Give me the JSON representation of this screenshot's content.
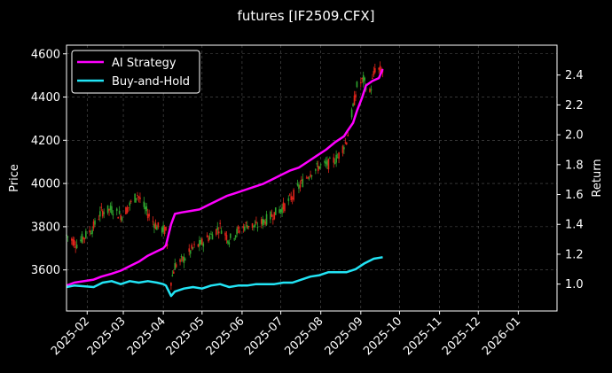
{
  "chart_data": {
    "type": "line",
    "title": "futures [IF2509.CFX]",
    "ylabel": "Price",
    "y2label": "Return",
    "x_ticks": [
      "2025-02",
      "2025-03",
      "2025-04",
      "2025-05",
      "2025-06",
      "2025-07",
      "2025-08",
      "2025-09",
      "2025-10",
      "2025-11",
      "2025-12",
      "2026-01"
    ],
    "xlim": [
      "2025-01-16",
      "2026-01-31"
    ],
    "ylim": [
      3410,
      4640
    ],
    "y_ticks": [
      3600,
      3800,
      4000,
      4200,
      4400,
      4600
    ],
    "y2lim": [
      0.82,
      2.6
    ],
    "y2_ticks": [
      "1.0",
      "1.2",
      "1.4",
      "1.6",
      "1.8",
      "2.0",
      "2.2",
      "2.4"
    ],
    "grid": true,
    "legend_position": "top-left",
    "series": [
      {
        "name": "AI Strategy",
        "axis": "right",
        "color": "#ff00ff",
        "x": [
          "2025-01-16",
          "2025-01-22",
          "2025-02-06",
          "2025-02-12",
          "2025-02-20",
          "2025-02-27",
          "2025-03-06",
          "2025-03-13",
          "2025-03-20",
          "2025-03-27",
          "2025-04-01",
          "2025-04-03",
          "2025-04-07",
          "2025-04-10",
          "2025-04-15",
          "2025-04-22",
          "2025-04-29",
          "2025-05-06",
          "2025-05-13",
          "2025-05-20",
          "2025-05-27",
          "2025-06-03",
          "2025-06-10",
          "2025-06-17",
          "2025-06-24",
          "2025-07-01",
          "2025-07-08",
          "2025-07-15",
          "2025-07-22",
          "2025-07-29",
          "2025-08-05",
          "2025-08-12",
          "2025-08-19",
          "2025-08-22",
          "2025-08-26",
          "2025-08-29",
          "2025-09-02",
          "2025-09-05",
          "2025-09-10",
          "2025-09-15",
          "2025-09-18"
        ],
        "values": [
          0.99,
          1.01,
          1.03,
          1.05,
          1.07,
          1.09,
          1.12,
          1.15,
          1.19,
          1.22,
          1.24,
          1.26,
          1.4,
          1.47,
          1.48,
          1.49,
          1.5,
          1.53,
          1.56,
          1.59,
          1.61,
          1.63,
          1.65,
          1.67,
          1.7,
          1.73,
          1.76,
          1.78,
          1.82,
          1.86,
          1.9,
          1.95,
          1.99,
          2.03,
          2.08,
          2.16,
          2.25,
          2.33,
          2.36,
          2.38,
          2.44
        ]
      },
      {
        "name": "Buy-and-Hold",
        "axis": "right",
        "color": "#22e4f5",
        "x": [
          "2025-01-16",
          "2025-01-22",
          "2025-02-06",
          "2025-02-13",
          "2025-02-20",
          "2025-02-27",
          "2025-03-06",
          "2025-03-13",
          "2025-03-20",
          "2025-03-27",
          "2025-04-01",
          "2025-04-03",
          "2025-04-07",
          "2025-04-10",
          "2025-04-17",
          "2025-04-24",
          "2025-05-01",
          "2025-05-08",
          "2025-05-15",
          "2025-05-22",
          "2025-05-29",
          "2025-06-05",
          "2025-06-12",
          "2025-06-19",
          "2025-06-26",
          "2025-07-03",
          "2025-07-10",
          "2025-07-17",
          "2025-07-24",
          "2025-07-31",
          "2025-08-07",
          "2025-08-14",
          "2025-08-21",
          "2025-08-28",
          "2025-09-04",
          "2025-09-11",
          "2025-09-18"
        ],
        "values": [
          0.98,
          0.99,
          0.98,
          1.01,
          1.02,
          1.0,
          1.02,
          1.01,
          1.02,
          1.01,
          1.0,
          0.99,
          0.92,
          0.95,
          0.97,
          0.98,
          0.97,
          0.99,
          1.0,
          0.98,
          0.99,
          0.99,
          1.0,
          1.0,
          1.0,
          1.01,
          1.01,
          1.03,
          1.05,
          1.06,
          1.08,
          1.08,
          1.08,
          1.1,
          1.14,
          1.17,
          1.18
        ]
      }
    ],
    "candlestick_price_path": {
      "axis": "left",
      "colors": {
        "up": "#2ea32e",
        "down": "#e0241b"
      },
      "x": [
        "2025-01-16",
        "2025-01-24",
        "2025-02-05",
        "2025-02-12",
        "2025-02-20",
        "2025-02-28",
        "2025-03-06",
        "2025-03-12",
        "2025-03-19",
        "2025-03-27",
        "2025-04-03",
        "2025-04-07",
        "2025-04-10",
        "2025-04-17",
        "2025-04-24",
        "2025-04-30",
        "2025-05-08",
        "2025-05-15",
        "2025-05-22",
        "2025-05-29",
        "2025-06-05",
        "2025-06-12",
        "2025-06-19",
        "2025-06-26",
        "2025-07-03",
        "2025-07-10",
        "2025-07-17",
        "2025-07-24",
        "2025-07-31",
        "2025-08-07",
        "2025-08-14",
        "2025-08-21",
        "2025-08-26",
        "2025-08-29",
        "2025-09-03",
        "2025-09-08",
        "2025-09-12",
        "2025-09-18"
      ],
      "values": [
        3760,
        3720,
        3790,
        3870,
        3880,
        3850,
        3900,
        3950,
        3870,
        3800,
        3780,
        3550,
        3620,
        3650,
        3700,
        3720,
        3760,
        3800,
        3740,
        3780,
        3810,
        3800,
        3830,
        3860,
        3890,
        3940,
        4000,
        4050,
        4080,
        4090,
        4120,
        4200,
        4350,
        4450,
        4480,
        4420,
        4530,
        4520
      ]
    }
  }
}
